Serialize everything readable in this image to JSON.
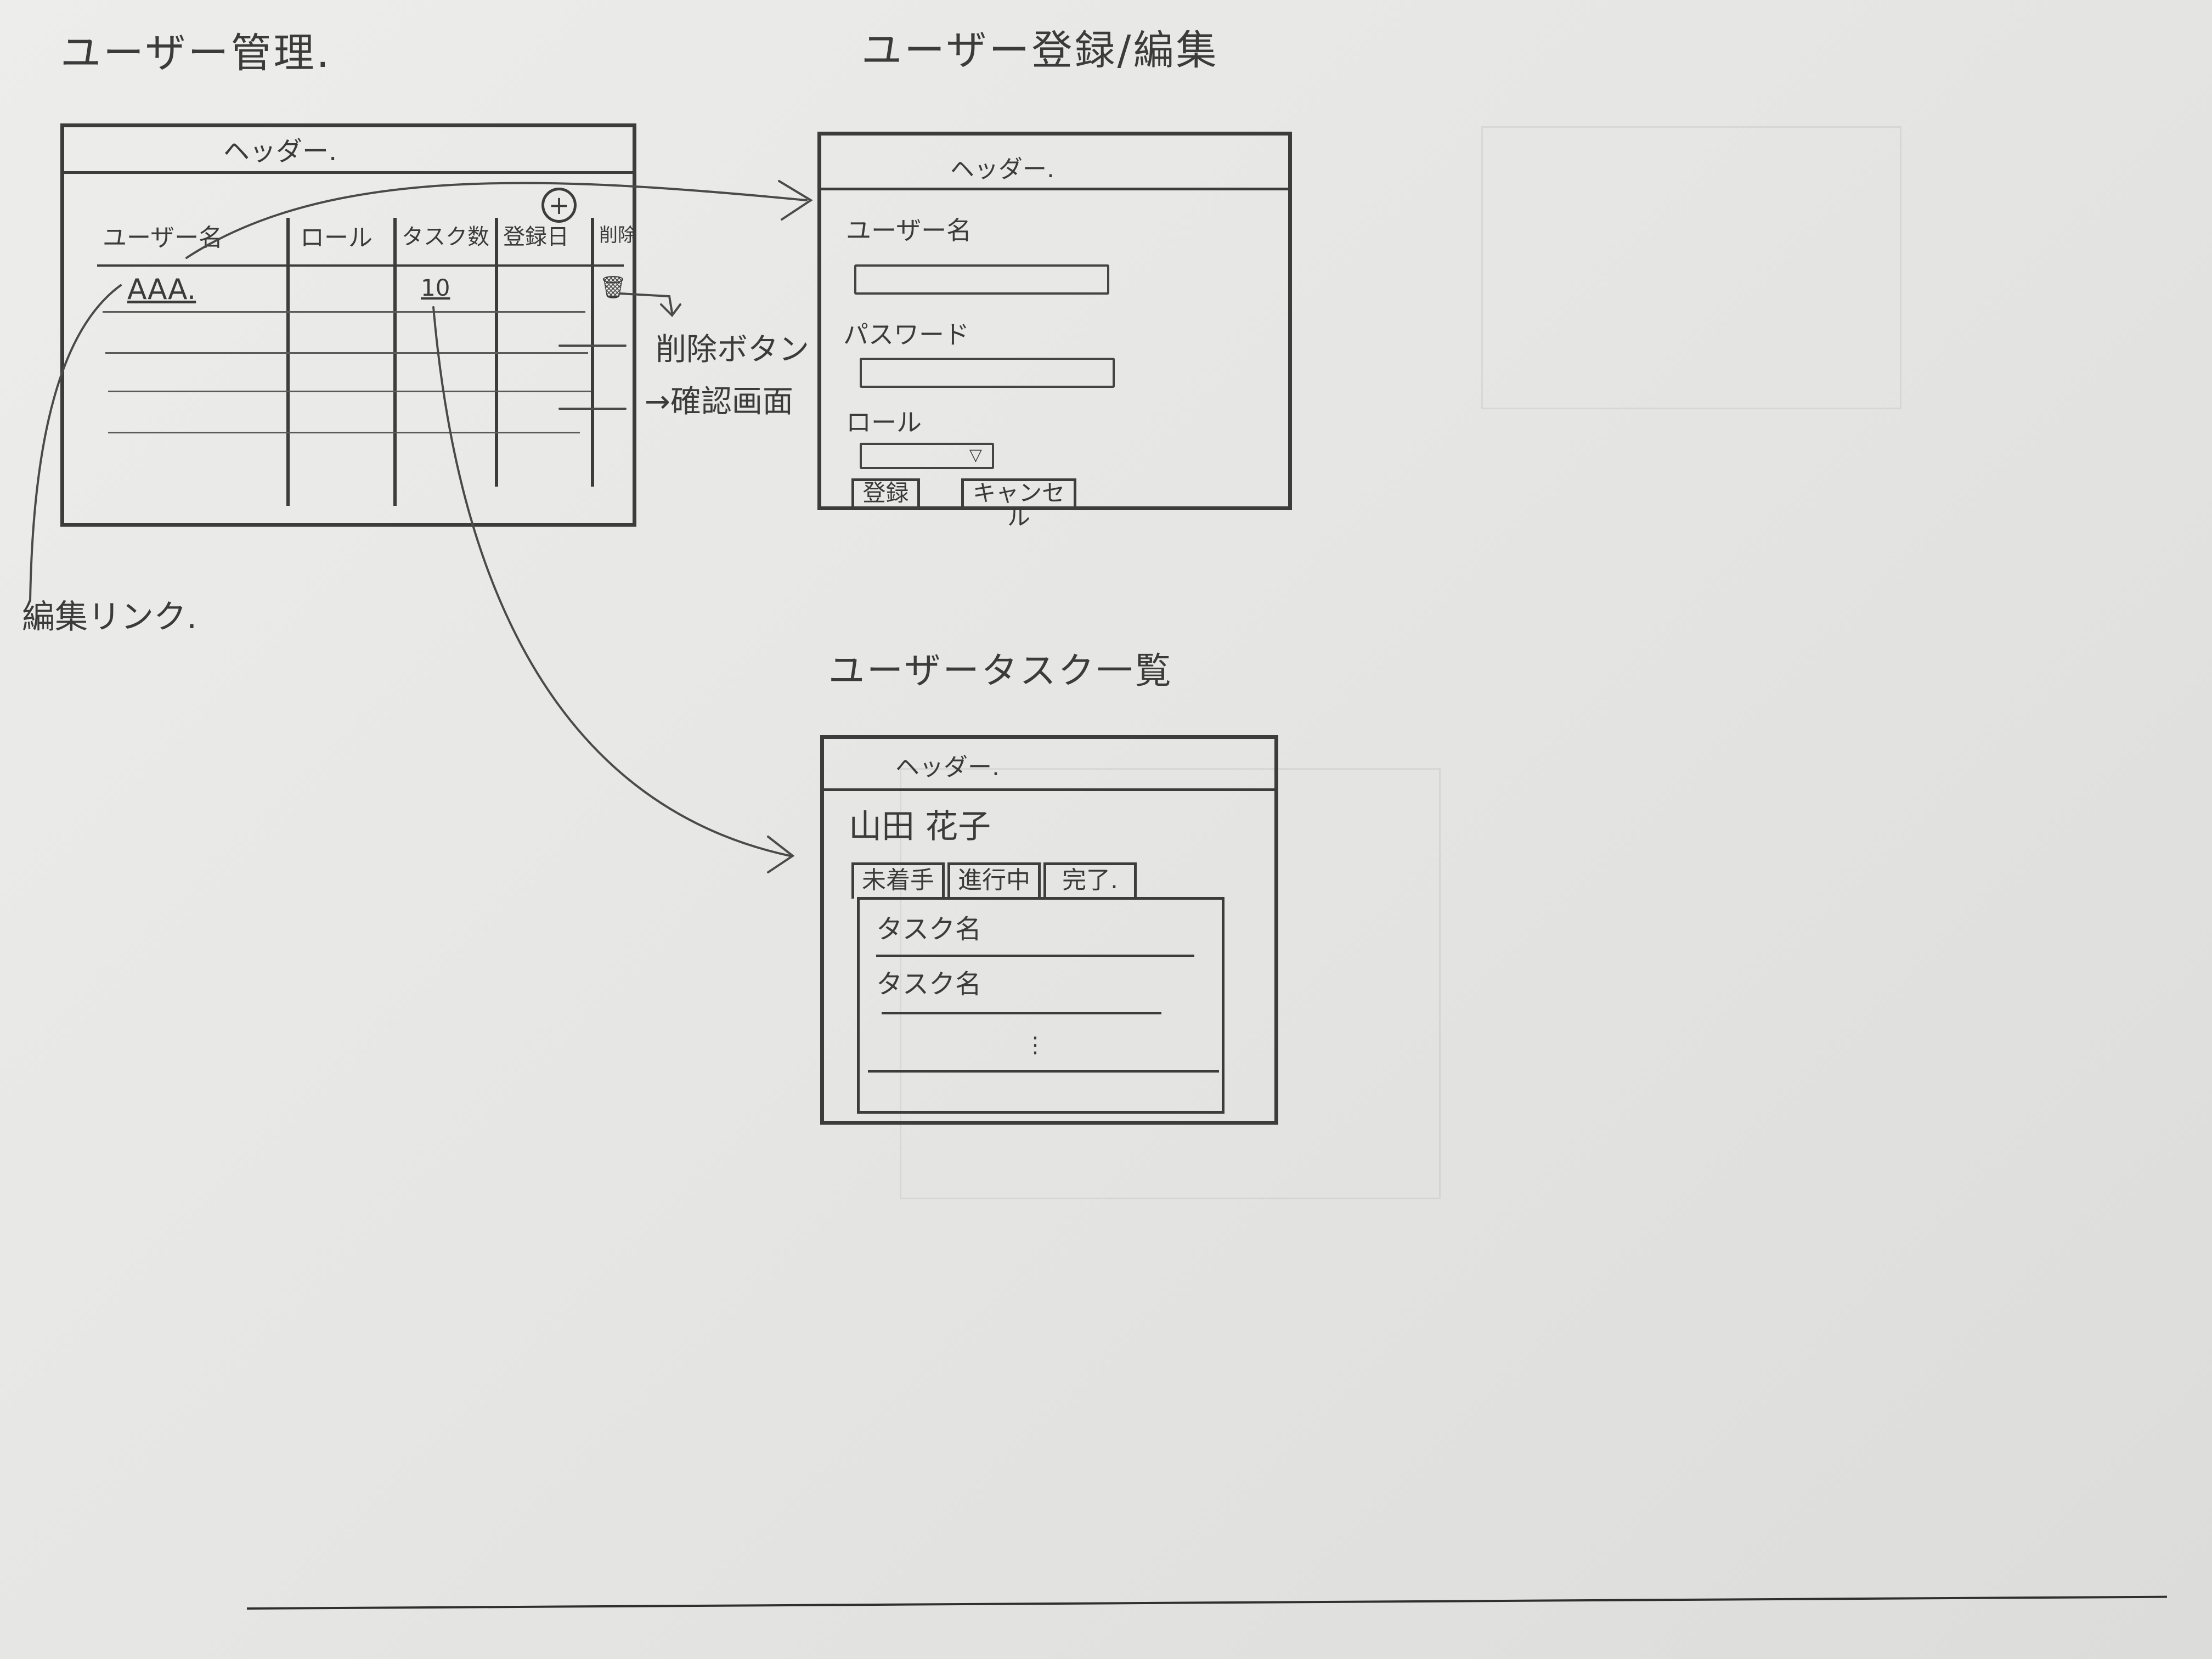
{
  "screen_user_management": {
    "title": "ユーザー管理.",
    "header": "ヘッダー.",
    "add_icon": "+",
    "columns": [
      "ユーザー名",
      "ロール",
      "タスク数",
      "登録日",
      "削除"
    ],
    "row": {
      "name": "AAA.",
      "task_count": "10",
      "delete_icon": "🗑"
    },
    "annotations": {
      "edit_link": "編集リンク.",
      "delete_button": "削除ボタン",
      "confirm_dialog": "→確認画面"
    }
  },
  "screen_user_edit": {
    "title": "ユーザー登録/編集",
    "header": "ヘッダー.",
    "username_label": "ユーザー名",
    "password_label": "パスワード",
    "role_label": "ロール",
    "role_select_arrow": "▽",
    "register_button": "登録",
    "cancel_button": "キャンセル"
  },
  "screen_user_tasks": {
    "title": "ユーザータスク一覧",
    "header": "ヘッダー.",
    "user_name": "山田 花子",
    "tabs": [
      "未着手",
      "進行中",
      "完了."
    ],
    "tasks": [
      "タスク名",
      "タスク名"
    ],
    "more": "⋮"
  }
}
